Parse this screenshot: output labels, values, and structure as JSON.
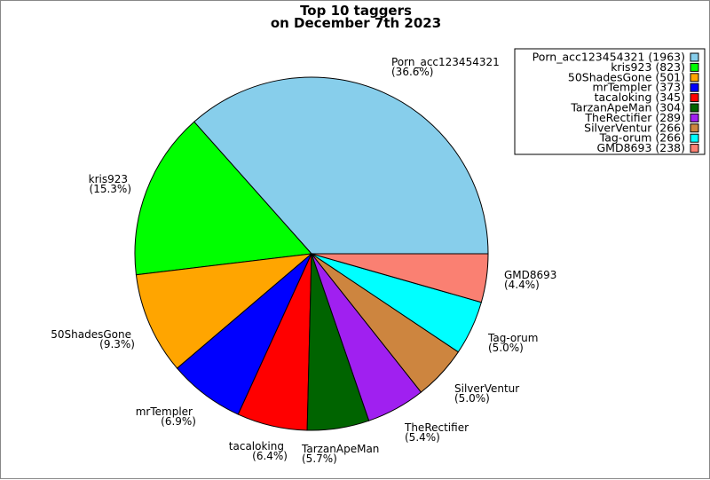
{
  "chart_data": {
    "type": "pie",
    "title": [
      "Top 10 taggers",
      "on December 7th 2023"
    ],
    "legend_position": "top-right",
    "slices": [
      {
        "name": "Porn_acc123454321",
        "value": 1963,
        "percent_label": "(36.6%)",
        "color": "#87ceeb"
      },
      {
        "name": "kris923",
        "value": 823,
        "percent_label": "(15.3%)",
        "color": "#00ff00"
      },
      {
        "name": "50ShadesGone",
        "value": 501,
        "percent_label": "(9.3%)",
        "color": "#ffa500"
      },
      {
        "name": "mrTempler",
        "value": 373,
        "percent_label": "(6.9%)",
        "color": "#0000ff"
      },
      {
        "name": "tacaloking",
        "value": 345,
        "percent_label": "(6.4%)",
        "color": "#ff0000"
      },
      {
        "name": "TarzanApeMan",
        "value": 304,
        "percent_label": "(5.7%)",
        "color": "#006400"
      },
      {
        "name": "TheRectifier",
        "value": 289,
        "percent_label": "(5.4%)",
        "color": "#a020f0"
      },
      {
        "name": "SilverVentur",
        "value": 266,
        "percent_label": "(5.0%)",
        "color": "#cd853f"
      },
      {
        "name": "Tag-orum",
        "value": 266,
        "percent_label": "(5.0%)",
        "color": "#00ffff"
      },
      {
        "name": "GMD8693",
        "value": 238,
        "percent_label": "(4.4%)",
        "color": "#fa8072"
      }
    ],
    "legend": [
      "Porn_acc123454321 (1963)",
      "kris923 (823)",
      "50ShadesGone (501)",
      "mrTempler (373)",
      "tacaloking (345)",
      "TarzanApeMan (304)",
      "TheRectifier (289)",
      "SilverVentur (266)",
      "Tag-orum (266)",
      "GMD8693 (238)"
    ]
  }
}
